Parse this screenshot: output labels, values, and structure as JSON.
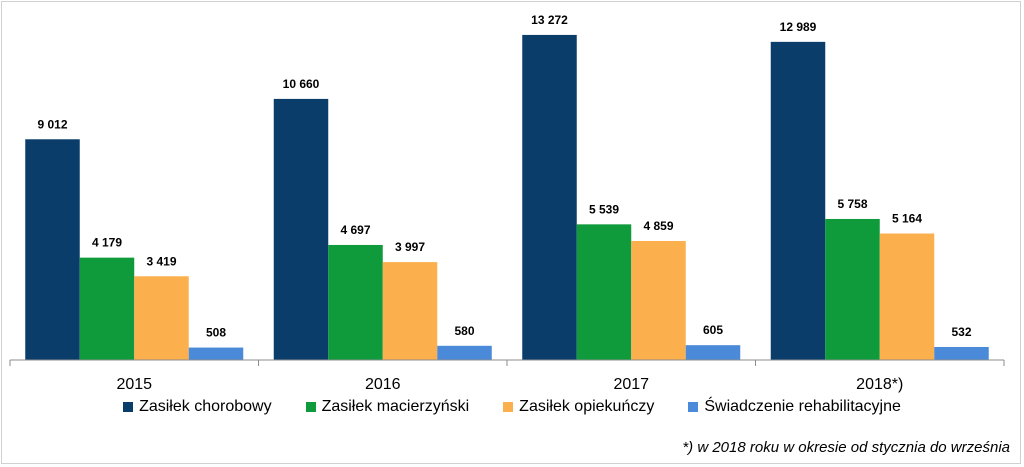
{
  "chart_data": {
    "type": "bar",
    "categories": [
      "2015",
      "2016",
      "2017",
      "2018*)"
    ],
    "series": [
      {
        "name": "Zasiłek chorobowy",
        "values": [
          9012,
          10660,
          13272,
          12989
        ],
        "color": "#0b3d6b",
        "labels": [
          "9 012",
          "10 660",
          "13 272",
          "12 989"
        ]
      },
      {
        "name": "Zasiłek macierzyński",
        "values": [
          4179,
          4697,
          5539,
          5758
        ],
        "color": "#0f9a3c",
        "labels": [
          "4 179",
          "4 697",
          "5 539",
          "5 758"
        ]
      },
      {
        "name": "Zasiłek opiekuńczy",
        "values": [
          3419,
          3997,
          4859,
          5164
        ],
        "color": "#fbb04d",
        "labels": [
          "3 419",
          "3 997",
          "4 859",
          "5 164"
        ]
      },
      {
        "name": "Świadczenie rehabilitacyjne",
        "values": [
          508,
          580,
          605,
          532
        ],
        "color": "#4a8ad8",
        "labels": [
          "508",
          "580",
          "605",
          "532"
        ]
      }
    ],
    "ylim": [
      0,
      13800
    ],
    "grid": false,
    "legend_placement": "bottom",
    "footnote": "*) w 2018 roku w okresie od stycznia do września"
  }
}
